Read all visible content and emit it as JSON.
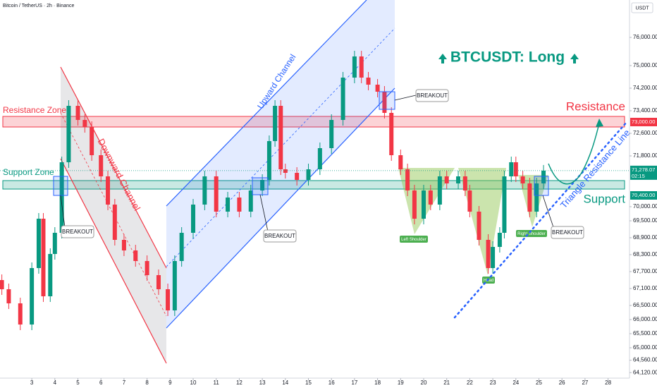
{
  "chart_data": {
    "type": "candlestick",
    "header": "Bitcoin / TetherUS · 2h · Binance",
    "currency": "USDT",
    "title": "BTCUSDT: Long",
    "annotations": {
      "resistance_zone": "Resistance Zone",
      "support_zone": "Support Zone",
      "resistance": "Resistance",
      "support": "Support",
      "downward_channel": "Downward Channel",
      "upward_channel": "Upward Channel",
      "triangle_line": "Triangle Resistance Line",
      "breakouts": [
        "BREAKOUT",
        "BREAKOUT",
        "BREAKOUT",
        "BREAKOUT"
      ],
      "left_shoulder": "Left Shoulder",
      "head": "Head",
      "right_shoulder": "Right Shoulder"
    },
    "up_color": "#089981",
    "down_color": "#f23645",
    "x": [
      1.7,
      2,
      2.5,
      3,
      3.3,
      3.5,
      3.8,
      4,
      4.3,
      4.6,
      5,
      5.3,
      5.6,
      6,
      6.3,
      6.6,
      7,
      7.5,
      8,
      8.5,
      8.9,
      9.2,
      9.5,
      10,
      10.5,
      11,
      11.5,
      12,
      12.5,
      13,
      13.3,
      13.55,
      13.8,
      14,
      14.5,
      15,
      15.5,
      16,
      16.5,
      17,
      17.3,
      17.6,
      18,
      18.3,
      18.6,
      19,
      19.3,
      19.6,
      20,
      20.3,
      20.7,
      21,
      21.5,
      21.8,
      22,
      22.4,
      22.8,
      23,
      23.3,
      23.5,
      23.8,
      24,
      24.3,
      24.6,
      24.9,
      25.2
    ],
    "open": [
      67400,
      67075,
      66575,
      65825,
      67825,
      69575,
      66825,
      68325,
      69075,
      71575,
      73575,
      73075,
      72825,
      71825,
      71075,
      70075,
      68825,
      68450,
      68075,
      67575,
      67075,
      66325,
      68075,
      69075,
      70075,
      71075,
      69825,
      70325,
      69825,
      70575,
      70950,
      72325,
      73575,
      71325,
      71200,
      70950,
      71325,
      72075,
      73075,
      74575,
      75325,
      74575,
      74325,
      74075,
      73325,
      71825,
      71325,
      70575,
      69575,
      70575,
      70075,
      71075,
      70825,
      71075,
      70575,
      69825,
      68825,
      67825,
      68575,
      69075,
      71075,
      71575,
      71075,
      70825,
      69825,
      70825
    ],
    "high": [
      67600,
      67275,
      66775,
      68025,
      69775,
      69775,
      68525,
      69275,
      71775,
      73775,
      73775,
      73275,
      73025,
      72025,
      71275,
      70275,
      69025,
      68650,
      68275,
      67775,
      67275,
      68275,
      69275,
      70275,
      71275,
      71275,
      70525,
      70525,
      70775,
      71150,
      72525,
      73775,
      73775,
      71525,
      71400,
      71525,
      72275,
      73275,
      74775,
      75525,
      75525,
      74775,
      74525,
      74275,
      73525,
      72025,
      71525,
      70775,
      70775,
      70775,
      71275,
      71275,
      71275,
      71275,
      70775,
      70025,
      69025,
      68775,
      69275,
      71275,
      71775,
      71775,
      71275,
      71025,
      71025,
      71478
    ],
    "low": [
      66875,
      66375,
      65625,
      65625,
      67625,
      66625,
      66625,
      68125,
      68875,
      71375,
      72875,
      72625,
      71625,
      70875,
      69875,
      68625,
      68250,
      67875,
      67375,
      66875,
      66125,
      66125,
      67875,
      68875,
      69875,
      69625,
      69625,
      69625,
      69625,
      70375,
      70750,
      72125,
      71125,
      71000,
      70750,
      70750,
      71125,
      71875,
      72875,
      74375,
      74375,
      74125,
      73875,
      73125,
      71625,
      71125,
      70375,
      69375,
      69375,
      69875,
      69875,
      70625,
      70625,
      70375,
      69625,
      68625,
      67625,
      67625,
      68375,
      68875,
      70875,
      70875,
      70625,
      69625,
      69625,
      70625
    ],
    "close": [
      67075,
      66575,
      65825,
      67825,
      69575,
      66825,
      68325,
      69075,
      71575,
      73575,
      73075,
      72825,
      71825,
      71075,
      70075,
      68825,
      68450,
      68075,
      67575,
      67075,
      66325,
      68075,
      69075,
      70075,
      71075,
      69825,
      70325,
      69825,
      70575,
      70950,
      72325,
      73575,
      71325,
      71200,
      70950,
      71325,
      72075,
      73075,
      74575,
      75325,
      74575,
      74325,
      74075,
      73325,
      71825,
      71325,
      70575,
      69575,
      70575,
      70075,
      71075,
      70825,
      71075,
      70575,
      69825,
      68825,
      67825,
      68575,
      69075,
      71075,
      71575,
      71075,
      70825,
      69825,
      70825,
      71278
    ],
    "xlim": [
      1.62,
      28.93
    ],
    "xticks": [
      3,
      4,
      5,
      6,
      7,
      8,
      9,
      10,
      11,
      12,
      13,
      14,
      15,
      16,
      17,
      18,
      19,
      20,
      21,
      22,
      23,
      24,
      25,
      26,
      27,
      28
    ],
    "ylim": [
      63925,
      77325
    ],
    "yticks": [
      {
        "value": 76000,
        "label": "76,000.00"
      },
      {
        "value": 75000,
        "label": "75,000.00"
      },
      {
        "value": 74200,
        "label": "74,200.00"
      },
      {
        "value": 73400,
        "label": "73,400.00"
      },
      {
        "value": 72600,
        "label": "72,600.00"
      },
      {
        "value": 71800,
        "label": "71,800.00"
      },
      {
        "value": 70000,
        "label": "70,000.00"
      },
      {
        "value": 69500,
        "label": "69,500.00"
      },
      {
        "value": 68900,
        "label": "68,900.00"
      },
      {
        "value": 68300,
        "label": "68,300.00"
      },
      {
        "value": 67700,
        "label": "67,700.00"
      },
      {
        "value": 67100,
        "label": "67,100.00"
      },
      {
        "value": 66500,
        "label": "66,500.00"
      },
      {
        "value": 66000,
        "label": "66,000.00"
      },
      {
        "value": 65500,
        "label": "65,500.00"
      },
      {
        "value": 65000,
        "label": "65,000.00"
      },
      {
        "value": 64560,
        "label": "64,560.00"
      },
      {
        "value": 64120,
        "label": "64,120.00"
      }
    ],
    "price_tags": [
      {
        "value": 73000,
        "label": "73,000.00",
        "color": "#f23645"
      },
      {
        "value": 70400,
        "label": "70,400.00",
        "color": "#089981"
      }
    ],
    "last_price": {
      "value": 71278.07,
      "label": "71,278.07",
      "countdown": "02:15"
    },
    "grid": false
  }
}
